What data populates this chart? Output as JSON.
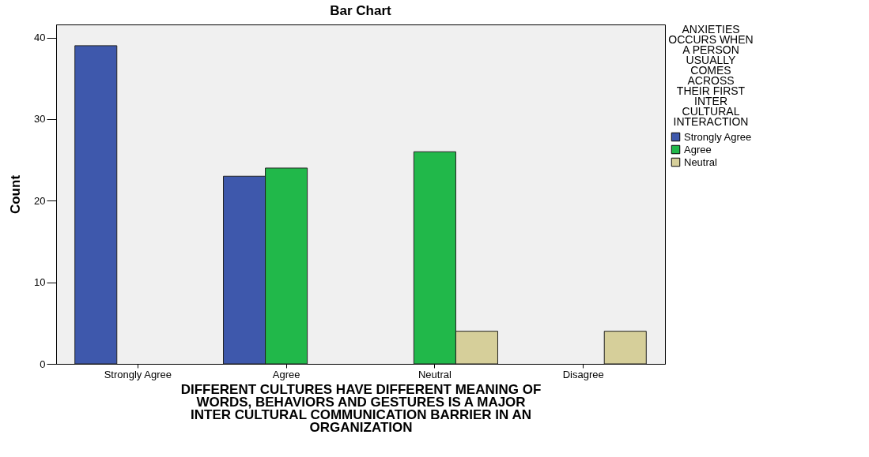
{
  "chart_data": {
    "type": "bar",
    "title": "Bar Chart",
    "xlabel": "DIFFERENT CULTURES HAVE DIFFERENT MEANING OF WORDS, BEHAVIORS AND GESTURES IS A MAJOR INTER CULTURAL COMMUNICATION BARRIER IN AN ORGANIZATION",
    "ylabel": "Count",
    "legend_title": "ANXIETIES OCCURS WHEN A PERSON USUALLY COMES ACROSS THEIR FIRST INTER CULTURAL INTERACTION",
    "categories": [
      "Strongly Agree",
      "Agree",
      "Neutral",
      "Disagree"
    ],
    "series": [
      {
        "name": "Strongly Agree",
        "color": "#3e58ac",
        "values": [
          39,
          23,
          null,
          null
        ]
      },
      {
        "name": "Agree",
        "color": "#21b84a",
        "values": [
          null,
          24,
          26,
          null
        ]
      },
      {
        "name": "Neutral",
        "color": "#d6cf9a",
        "values": [
          null,
          null,
          4,
          4
        ]
      }
    ],
    "ylim": [
      0,
      41.6
    ],
    "yticks": [
      0,
      10,
      20,
      30,
      40
    ],
    "grid": false,
    "legend": "top right"
  }
}
